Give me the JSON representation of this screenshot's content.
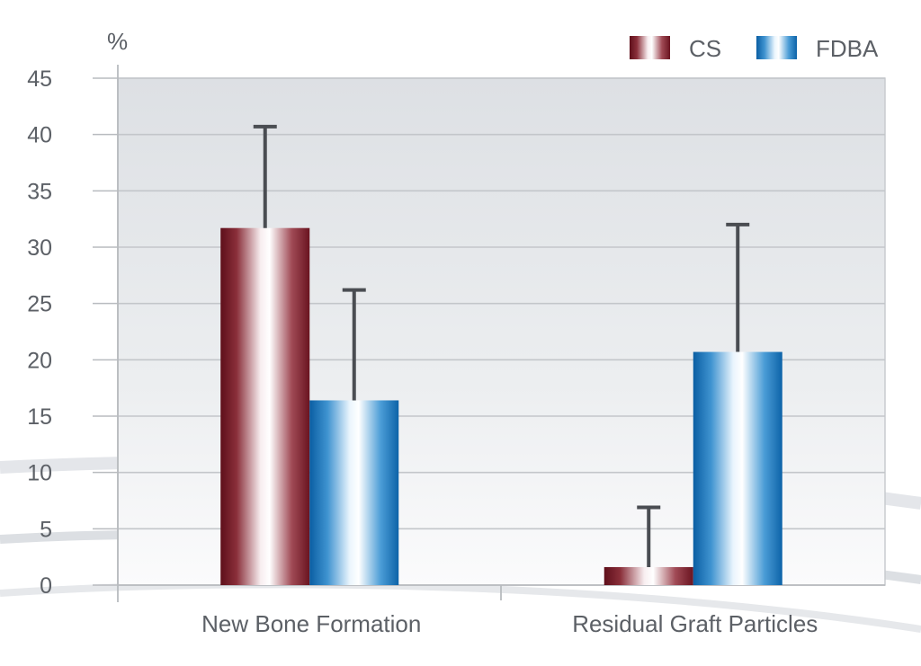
{
  "chart_data": {
    "type": "bar",
    "ylabel": "%",
    "ylim": [
      0,
      45
    ],
    "yticks": [
      0,
      5,
      10,
      15,
      20,
      25,
      30,
      35,
      40,
      45
    ],
    "grid": true,
    "legend_position": "top-right",
    "categories": [
      "New Bone Formation",
      "Residual Graft Particles"
    ],
    "series": [
      {
        "name": "CS",
        "values": [
          31.7,
          1.6
        ],
        "error": [
          9.0,
          5.3
        ],
        "color": "#7a1e2a"
      },
      {
        "name": "FDBA",
        "values": [
          16.4,
          20.7
        ],
        "error": [
          9.8,
          11.3
        ],
        "color": "#1571b8"
      }
    ]
  }
}
